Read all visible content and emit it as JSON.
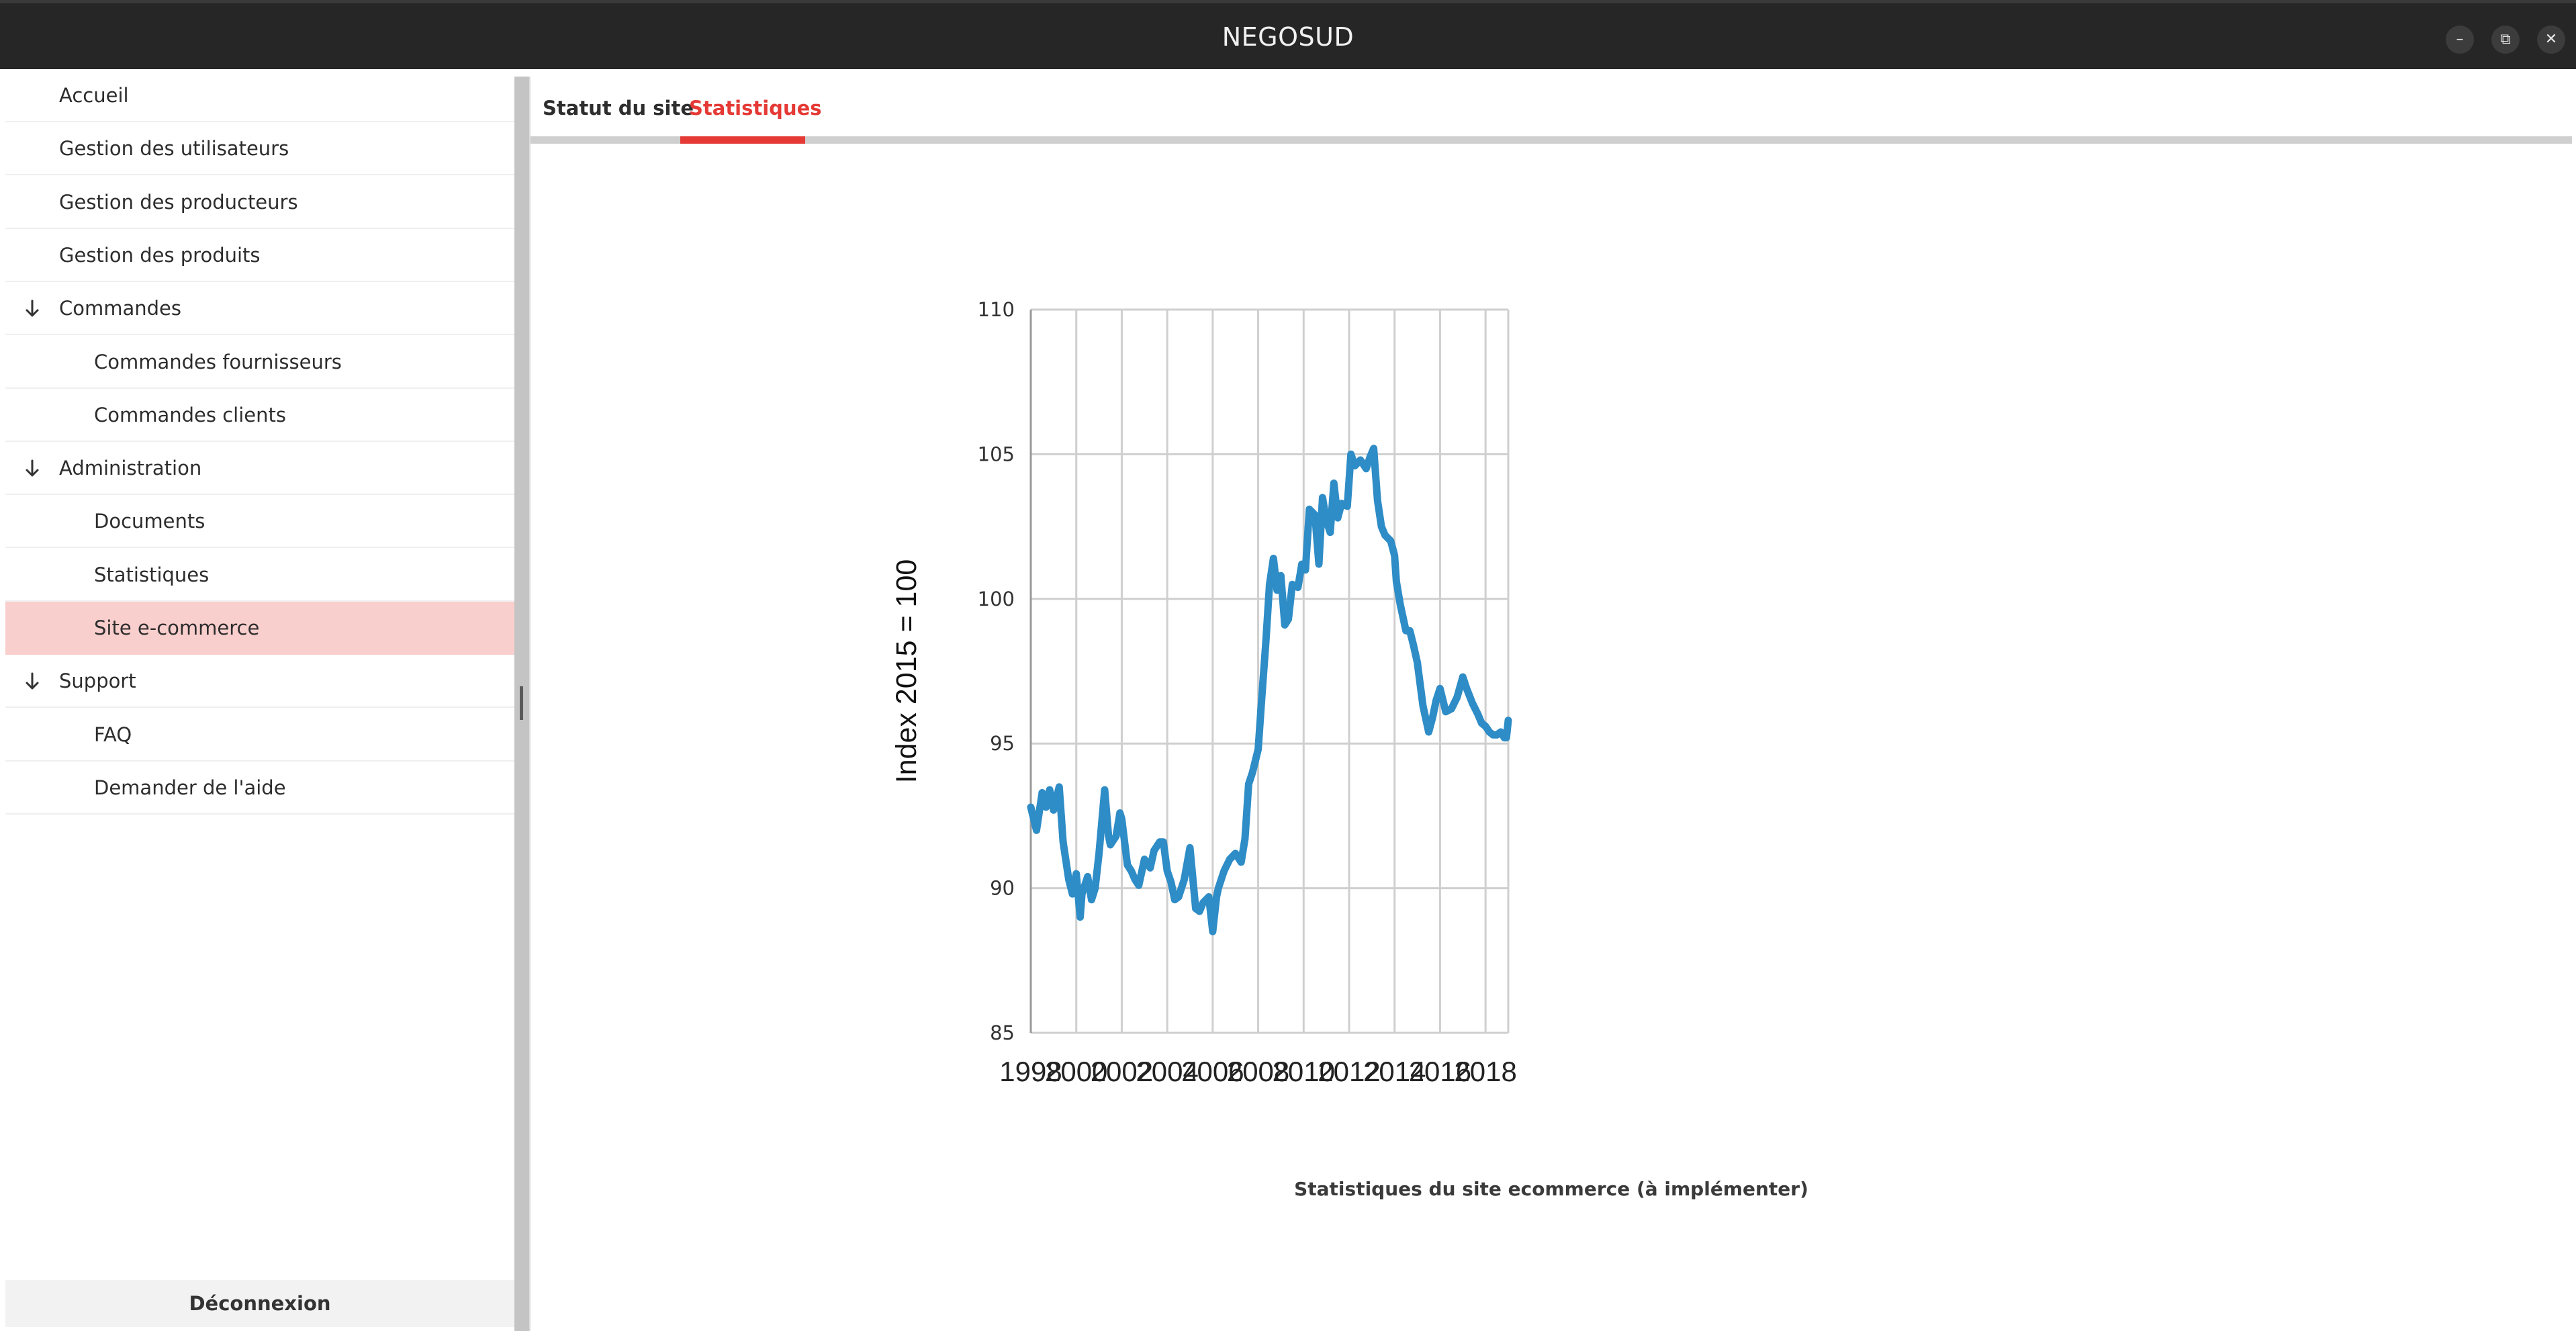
{
  "window": {
    "title": "NEGOSUD",
    "controls": {
      "minimize": "–",
      "restore": "⧉",
      "close": "✕"
    }
  },
  "sidebar": {
    "items": [
      {
        "label": "Accueil",
        "level": 0
      },
      {
        "label": "Gestion des utilisateurs",
        "level": 0
      },
      {
        "label": "Gestion des producteurs",
        "level": 0
      },
      {
        "label": "Gestion des produits",
        "level": 0
      },
      {
        "label": "Commandes",
        "level": 0,
        "expanded": true
      },
      {
        "label": "Commandes fournisseurs",
        "level": 1
      },
      {
        "label": "Commandes clients",
        "level": 1
      },
      {
        "label": "Administration",
        "level": 0,
        "expanded": true
      },
      {
        "label": "Documents",
        "level": 1
      },
      {
        "label": "Statistiques",
        "level": 1
      },
      {
        "label": "Site e-commerce",
        "level": 1,
        "selected": true
      },
      {
        "label": "Support",
        "level": 0,
        "expanded": true
      },
      {
        "label": "FAQ",
        "level": 1
      },
      {
        "label": "Demander de l'aide",
        "level": 1
      }
    ],
    "logout_label": "Déconnexion",
    "selected_color": "#f9cfcd"
  },
  "tabs": {
    "items": [
      {
        "label": "Statut du site",
        "active": false
      },
      {
        "label": "Statistiques",
        "active": true
      }
    ],
    "accent_color": "#e53935"
  },
  "main": {
    "caption": "Statistiques du site ecommerce (à implémenter)"
  },
  "chart_data": {
    "type": "line",
    "title": "",
    "xlabel": "",
    "ylabel": "Index 2015 = 100",
    "xlim": [
      1998,
      2019
    ],
    "ylim": [
      85,
      110
    ],
    "x_ticks": [
      "1998",
      "2000",
      "2002",
      "2004",
      "2006",
      "2008",
      "2010",
      "2012",
      "2014",
      "2016",
      "2018"
    ],
    "y_ticks": [
      "85",
      "90",
      "95",
      "100",
      "105",
      "110"
    ],
    "grid": true,
    "line_color": "#2e8cc6",
    "series": [
      {
        "name": "",
        "x": [
          1998.0,
          1998.25,
          1998.5,
          1998.67,
          1998.83,
          1999.0,
          1999.25,
          1999.42,
          1999.67,
          1999.83,
          2000.0,
          2000.17,
          2000.25,
          2000.5,
          2000.67,
          2000.83,
          2001.0,
          2001.25,
          2001.42,
          2001.5,
          2001.75,
          2001.92,
          2002.0,
          2002.25,
          2002.42,
          2002.58,
          2002.75,
          2003.0,
          2003.25,
          2003.42,
          2003.67,
          2003.83,
          2004.0,
          2004.17,
          2004.33,
          2004.5,
          2004.75,
          2005.0,
          2005.25,
          2005.42,
          2005.58,
          2005.83,
          2006.0,
          2006.17,
          2006.25,
          2006.5,
          2006.75,
          2007.0,
          2007.25,
          2007.42,
          2007.58,
          2007.75,
          2008.0,
          2008.17,
          2008.33,
          2008.5,
          2008.67,
          2008.83,
          2009.0,
          2009.17,
          2009.33,
          2009.5,
          2009.75,
          2009.92,
          2010.08,
          2010.25,
          2010.5,
          2010.67,
          2010.83,
          2011.0,
          2011.17,
          2011.33,
          2011.5,
          2011.67,
          2011.92,
          2012.08,
          2012.25,
          2012.5,
          2012.75,
          2012.92,
          2013.08,
          2013.25,
          2013.42,
          2013.58,
          2013.83,
          2014.0,
          2014.08,
          2014.25,
          2014.5,
          2014.67,
          2014.83,
          2015.0,
          2015.25,
          2015.5,
          2015.67,
          2015.83,
          2016.0,
          2016.25,
          2016.5,
          2016.75,
          2017.0,
          2017.17,
          2017.42,
          2017.67,
          2017.83,
          2018.0,
          2018.17,
          2018.33,
          2018.5,
          2018.67,
          2018.83,
          2018.92,
          2019.0
        ],
        "values": [
          92.8,
          92.0,
          93.3,
          92.8,
          93.4,
          92.7,
          93.5,
          91.6,
          90.3,
          89.8,
          90.5,
          89.0,
          89.8,
          90.4,
          89.6,
          90.0,
          91.2,
          93.4,
          91.8,
          91.5,
          91.8,
          92.6,
          92.4,
          90.8,
          90.6,
          90.3,
          90.1,
          91.0,
          90.7,
          91.3,
          91.6,
          91.6,
          90.6,
          90.2,
          89.6,
          89.7,
          90.3,
          91.4,
          89.3,
          89.2,
          89.5,
          89.7,
          88.5,
          89.7,
          90.0,
          90.6,
          91.0,
          91.2,
          90.9,
          91.7,
          93.6,
          94.0,
          94.8,
          96.7,
          98.4,
          100.5,
          101.4,
          100.3,
          100.8,
          99.1,
          99.3,
          100.5,
          100.4,
          101.2,
          101.0,
          103.1,
          102.9,
          101.2,
          103.5,
          102.7,
          102.3,
          104.0,
          102.8,
          103.3,
          103.2,
          105.0,
          104.6,
          104.8,
          104.5,
          104.9,
          105.2,
          103.4,
          102.5,
          102.2,
          102.0,
          101.5,
          100.6,
          99.8,
          98.9,
          98.9,
          98.4,
          97.8,
          96.3,
          95.4,
          95.9,
          96.5,
          96.9,
          96.1,
          96.2,
          96.6,
          97.3,
          96.9,
          96.4,
          96.0,
          95.7,
          95.6,
          95.4,
          95.3,
          95.3,
          95.4,
          95.2,
          95.2,
          95.8
        ]
      }
    ]
  }
}
